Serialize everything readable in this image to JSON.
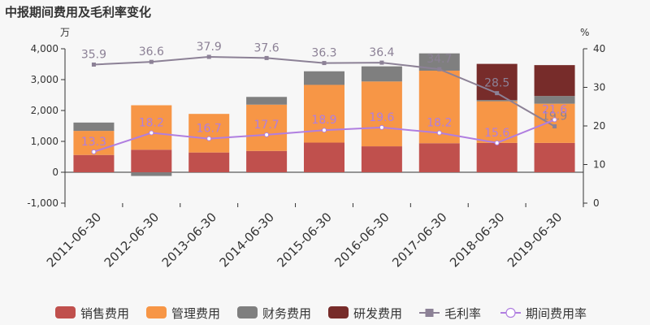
{
  "chart_data": {
    "type": "bar",
    "title": "中报期间费用及毛利率变化",
    "y_left_unit": "万",
    "y_right_unit": "%",
    "ylim_left": [
      -1000,
      4000
    ],
    "yticks_left": [
      "-1,000",
      "0",
      "1,000",
      "2,000",
      "3,000",
      "4,000"
    ],
    "ylim_right": [
      0,
      40
    ],
    "yticks_right": [
      "0",
      "10",
      "20",
      "30",
      "40"
    ],
    "categories": [
      "2011-06-30",
      "2012-06-30",
      "2013-06-30",
      "2014-06-30",
      "2015-06-30",
      "2016-06-30",
      "2017-06-30",
      "2018-06-30",
      "2019-06-30"
    ],
    "bar_series": [
      {
        "name": "销售费用",
        "color": "#c0504d",
        "values": [
          560,
          730,
          640,
          690,
          960,
          840,
          940,
          950,
          950
        ]
      },
      {
        "name": "管理费用",
        "color": "#f79646",
        "values": [
          780,
          1440,
          1250,
          1500,
          1870,
          2100,
          2350,
          1350,
          1270
        ]
      },
      {
        "name": "财务费用",
        "color": "#7f7f7f",
        "values": [
          270,
          -120,
          0,
          250,
          440,
          490,
          560,
          40,
          250
        ]
      },
      {
        "name": "研发费用",
        "color": "#772c2a",
        "values": [
          0,
          0,
          0,
          0,
          0,
          0,
          0,
          1170,
          1000
        ]
      }
    ],
    "line_series": [
      {
        "name": "毛利率",
        "color": "#8c8196",
        "marker": "square",
        "values": [
          35.9,
          36.6,
          37.9,
          37.6,
          36.3,
          36.4,
          34.7,
          28.5,
          19.9
        ]
      },
      {
        "name": "期间费用率",
        "color": "#b07ee0",
        "marker": "circle",
        "values": [
          13.3,
          18.2,
          16.7,
          17.7,
          18.9,
          19.6,
          18.2,
          15.6,
          21.6
        ]
      }
    ],
    "legend_position": "bottom",
    "grid": false
  }
}
